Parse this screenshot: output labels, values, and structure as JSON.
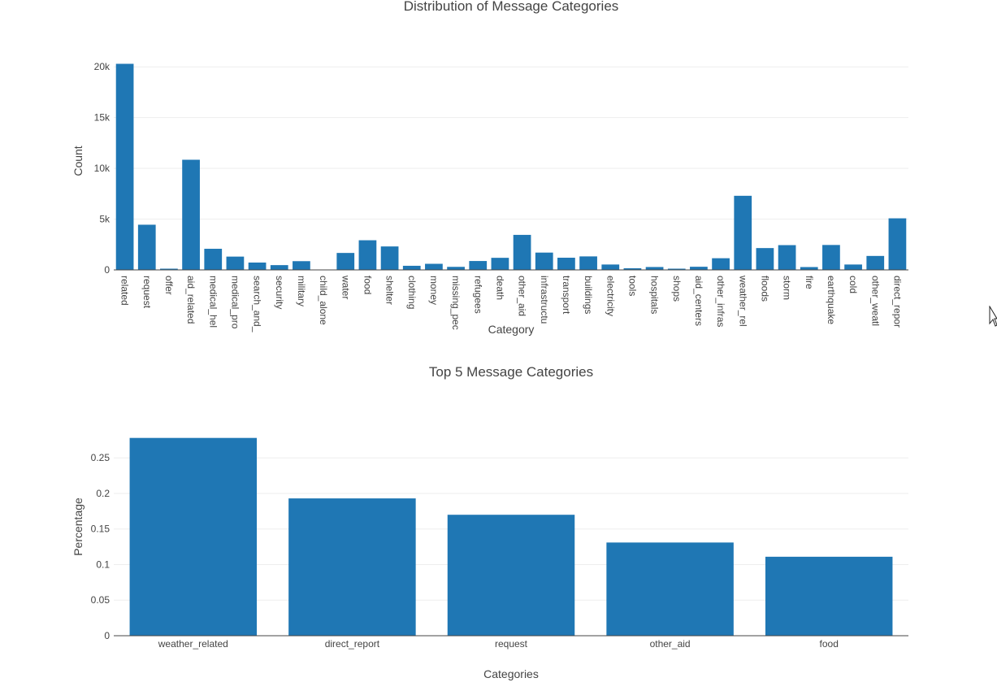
{
  "chart_data": [
    {
      "type": "bar",
      "title": "Distribution of Message Categories",
      "xlabel": "Category",
      "ylabel": "Count",
      "ylim": [
        0,
        20500
      ],
      "yticks": [
        0,
        5000,
        10000,
        15000,
        20000
      ],
      "ytick_labels": [
        "0",
        "5k",
        "10k",
        "15k",
        "20k"
      ],
      "grid": true,
      "bar_color": "#1f77b4",
      "categories": [
        "related",
        "request",
        "offer",
        "aid_related",
        "medical_hel",
        "medical_pro",
        "search_and_",
        "security",
        "military",
        "child_alone",
        "water",
        "food",
        "shelter",
        "clothing",
        "money",
        "missing_pec",
        "refugees",
        "death",
        "other_aid",
        "infrastructu",
        "transport",
        "buildings",
        "electricity",
        "tools",
        "hospitals",
        "shops",
        "aid_centers",
        "other_infras",
        "weather_rel",
        "floods",
        "storm",
        "fire",
        "earthquake",
        "cold",
        "other_weatl",
        "direct_repor"
      ],
      "values": [
        20300,
        4450,
        120,
        10850,
        2080,
        1310,
        725,
        470,
        860,
        0,
        1670,
        2920,
        2310,
        405,
        600,
        300,
        875,
        1190,
        3450,
        1705,
        1200,
        1330,
        530,
        160,
        285,
        120,
        310,
        1150,
        7300,
        2150,
        2440,
        280,
        2455,
        530,
        1375,
        5080
      ]
    },
    {
      "type": "bar",
      "title": "Top 5 Message Categories",
      "xlabel": "Categories",
      "ylabel": "Percentage",
      "ylim": [
        0,
        0.2925
      ],
      "yticks": [
        0,
        0.05,
        0.1,
        0.15,
        0.2,
        0.25
      ],
      "ytick_labels": [
        "0",
        "0.05",
        "0.1",
        "0.15",
        "0.2",
        "0.25"
      ],
      "grid": true,
      "bar_color": "#1f77b4",
      "categories": [
        "weather_related",
        "direct_report",
        "request",
        "other_aid",
        "food"
      ],
      "values": [
        0.278,
        0.193,
        0.17,
        0.131,
        0.111
      ]
    }
  ]
}
